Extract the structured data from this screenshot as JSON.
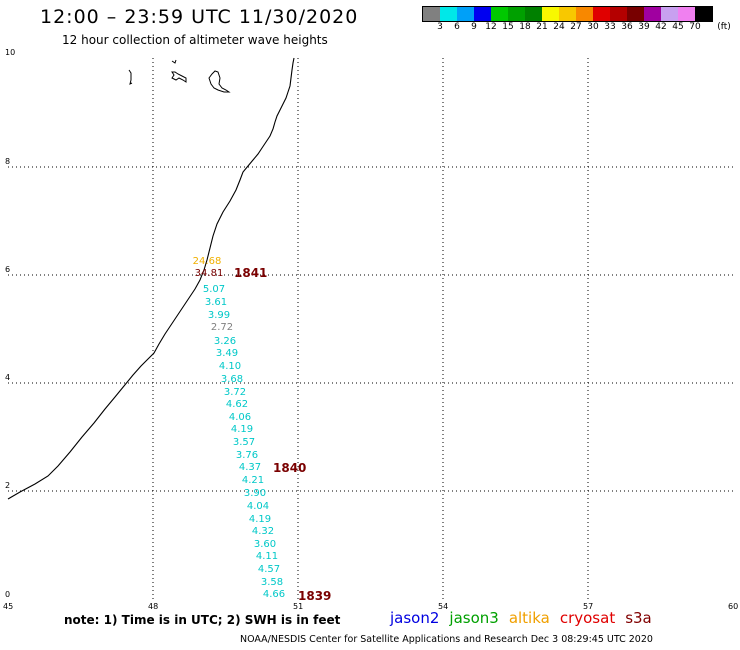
{
  "header": {
    "title": "12:00 – 23:59 UTC 11/30/2020",
    "subtitle": "12 hour collection of altimeter wave heights"
  },
  "legend": {
    "colors": [
      "#808080",
      "#00e8e8",
      "#00a0f8",
      "#0000f0",
      "#00c800",
      "#00a000",
      "#008000",
      "#f8f800",
      "#f8c800",
      "#f88800",
      "#e00000",
      "#b40000",
      "#780000",
      "#a000a0",
      "#c8a0f0",
      "#f080f0",
      "#000000"
    ],
    "labels": [
      "3",
      "6",
      "9",
      "12",
      "15",
      "18",
      "21",
      "24",
      "27",
      "30",
      "33",
      "36",
      "39",
      "42",
      "45",
      "70"
    ],
    "unit": "(ft)"
  },
  "axes": {
    "lat_labels": [
      "0",
      "2",
      "4",
      "6",
      "8",
      "10"
    ],
    "lon_labels": [
      "45",
      "48",
      "51",
      "54",
      "57",
      "60"
    ]
  },
  "passes": [
    {
      "id": "pass-1841",
      "label": "1841",
      "color": "#7a0000"
    },
    {
      "id": "pass-1840",
      "label": "1840",
      "color": "#7a0000"
    },
    {
      "id": "pass-1839",
      "label": "1839",
      "color": "#7a0000"
    }
  ],
  "wave_heights": [
    {
      "v": "24.68",
      "c": "#f0b000"
    },
    {
      "v": "34.81",
      "c": "#7a0000"
    },
    {
      "v": "5.07",
      "c": "#00c8c8"
    },
    {
      "v": "3.61",
      "c": "#00c8c8"
    },
    {
      "v": "3.99",
      "c": "#00c8c8"
    },
    {
      "v": "2.72",
      "c": "#808080"
    },
    {
      "v": "3.26",
      "c": "#00c8c8"
    },
    {
      "v": "3.49",
      "c": "#00c8c8"
    },
    {
      "v": "4.10",
      "c": "#00c8c8"
    },
    {
      "v": "3.68",
      "c": "#00c8c8"
    },
    {
      "v": "3.72",
      "c": "#00c8c8"
    },
    {
      "v": "4.62",
      "c": "#00c8c8"
    },
    {
      "v": "4.06",
      "c": "#00c8c8"
    },
    {
      "v": "4.19",
      "c": "#00c8c8"
    },
    {
      "v": "3.57",
      "c": "#00c8c8"
    },
    {
      "v": "3.76",
      "c": "#00c8c8"
    },
    {
      "v": "4.37",
      "c": "#00c8c8"
    },
    {
      "v": "4.21",
      "c": "#00c8c8"
    },
    {
      "v": "3.90",
      "c": "#00c8c8"
    },
    {
      "v": "4.04",
      "c": "#00c8c8"
    },
    {
      "v": "4.19",
      "c": "#00c8c8"
    },
    {
      "v": "4.32",
      "c": "#00c8c8"
    },
    {
      "v": "3.60",
      "c": "#00c8c8"
    },
    {
      "v": "4.11",
      "c": "#00c8c8"
    },
    {
      "v": "4.57",
      "c": "#00c8c8"
    },
    {
      "v": "3.58",
      "c": "#00c8c8"
    },
    {
      "v": "4.66",
      "c": "#00c8c8"
    }
  ],
  "footer": {
    "note": "note: 1) Time is in UTC; 2) SWH is in feet",
    "satellites": [
      {
        "name": "jason2",
        "color": "#0000e0"
      },
      {
        "name": "jason3",
        "color": "#00a000"
      },
      {
        "name": "altika",
        "color": "#f0a000"
      },
      {
        "name": "cryosat",
        "color": "#e00000"
      },
      {
        "name": "s3a",
        "color": "#800000"
      }
    ],
    "credit": "NOAA/NESDIS Center for Satellite Applications and Research    Dec  3 08:29:45 UTC 2020"
  }
}
